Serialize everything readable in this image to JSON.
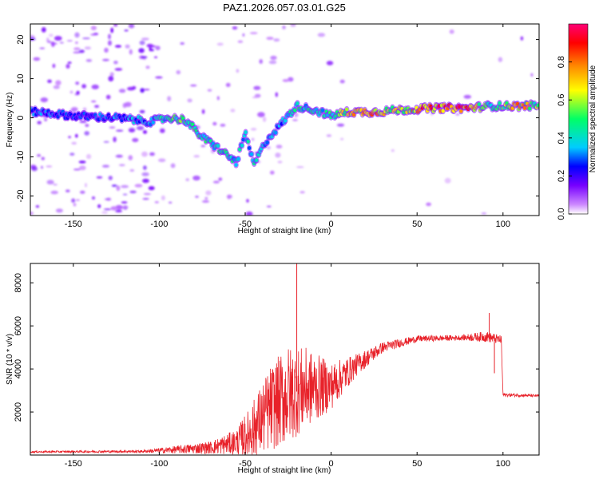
{
  "title": "PAZ1.2026.057.03.01.G25",
  "chart_data": [
    {
      "type": "heatmap",
      "xlabel": "Height of straight line (km)",
      "ylabel": "Frequency (Hz)",
      "xlim": [
        -175,
        121
      ],
      "ylim": [
        -25,
        24
      ],
      "xticks": [
        -150,
        -100,
        -50,
        0,
        50,
        100
      ],
      "yticks": [
        -20,
        -10,
        0,
        10,
        20
      ],
      "colorbar": {
        "label": "Normalized spectral amplitude",
        "range": [
          0,
          1
        ],
        "ticks": [
          "0.0",
          "0.2",
          "0.4",
          "0.6",
          "0.8"
        ],
        "colors": [
          "#ffffff",
          "#cc88ff",
          "#6600ff",
          "#0000ff",
          "#00ccff",
          "#00ff66",
          "#ffff00",
          "#ff6600",
          "#ff0000",
          "#ff0066"
        ]
      },
      "ridge": [
        {
          "x": -170,
          "y": 1.5,
          "amp": 0.3
        },
        {
          "x": -150,
          "y": 0.5,
          "amp": 0.25
        },
        {
          "x": -125,
          "y": 0.0,
          "amp": 0.3
        },
        {
          "x": -105,
          "y": -1.0,
          "amp": 0.35
        },
        {
          "x": -95,
          "y": 0.0,
          "amp": 0.45
        },
        {
          "x": -85,
          "y": -0.5,
          "amp": 0.5
        },
        {
          "x": -75,
          "y": -5.0,
          "amp": 0.45
        },
        {
          "x": -65,
          "y": -8.0,
          "amp": 0.45
        },
        {
          "x": -55,
          "y": -11.5,
          "amp": 0.4
        },
        {
          "x": -50,
          "y": -4.0,
          "amp": 0.4
        },
        {
          "x": -45,
          "y": -12.0,
          "amp": 0.4
        },
        {
          "x": -38,
          "y": -6.0,
          "amp": 0.35
        },
        {
          "x": -30,
          "y": -2.0,
          "amp": 0.3
        },
        {
          "x": -20,
          "y": 3.0,
          "amp": 0.45
        },
        {
          "x": -10,
          "y": 2.0,
          "amp": 0.4
        },
        {
          "x": 0,
          "y": 0.5,
          "amp": 0.45
        },
        {
          "x": 10,
          "y": 1.5,
          "amp": 0.7
        },
        {
          "x": 25,
          "y": 1.5,
          "amp": 0.75
        },
        {
          "x": 40,
          "y": 2.0,
          "amp": 0.6
        },
        {
          "x": 60,
          "y": 2.5,
          "amp": 0.85
        },
        {
          "x": 80,
          "y": 2.5,
          "amp": 0.85
        },
        {
          "x": 92,
          "y": 3.0,
          "amp": 0.4
        },
        {
          "x": 110,
          "y": 3.0,
          "amp": 0.75
        },
        {
          "x": 121,
          "y": 3.2,
          "amp": 0.5
        }
      ]
    },
    {
      "type": "line",
      "xlabel": "Height of straight line (km)",
      "ylabel": "SNR (10 * v/v)",
      "xlim": [
        -175,
        121
      ],
      "ylim": [
        0,
        8900
      ],
      "xticks": [
        -150,
        -100,
        -50,
        0,
        50,
        100
      ],
      "yticks": [
        2000,
        4000,
        6000,
        8000
      ],
      "color": "#e8222a",
      "envelope": [
        {
          "x": -175,
          "mean": 150,
          "noise": 40
        },
        {
          "x": -110,
          "mean": 170,
          "noise": 60
        },
        {
          "x": -90,
          "mean": 250,
          "noise": 180
        },
        {
          "x": -70,
          "mean": 350,
          "noise": 300
        },
        {
          "x": -55,
          "mean": 600,
          "noise": 600
        },
        {
          "x": -45,
          "mean": 1200,
          "noise": 1400
        },
        {
          "x": -35,
          "mean": 2200,
          "noise": 2000
        },
        {
          "x": -25,
          "mean": 2800,
          "noise": 2300
        },
        {
          "x": -15,
          "mean": 3100,
          "noise": 1900
        },
        {
          "x": 0,
          "mean": 3200,
          "noise": 1100
        },
        {
          "x": 15,
          "mean": 4200,
          "noise": 500
        },
        {
          "x": 30,
          "mean": 5000,
          "noise": 250
        },
        {
          "x": 50,
          "mean": 5400,
          "noise": 150
        },
        {
          "x": 75,
          "mean": 5450,
          "noise": 120
        },
        {
          "x": 90,
          "mean": 5500,
          "noise": 250
        },
        {
          "x": 99,
          "mean": 5350,
          "noise": 200
        },
        {
          "x": 100,
          "mean": 2800,
          "noise": 80
        },
        {
          "x": 121,
          "mean": 2750,
          "noise": 60
        }
      ],
      "spikes": [
        {
          "x": -20,
          "y": 8900
        },
        {
          "x": 92,
          "y": 6600
        },
        {
          "x": 95,
          "y": 3800
        }
      ]
    }
  ]
}
